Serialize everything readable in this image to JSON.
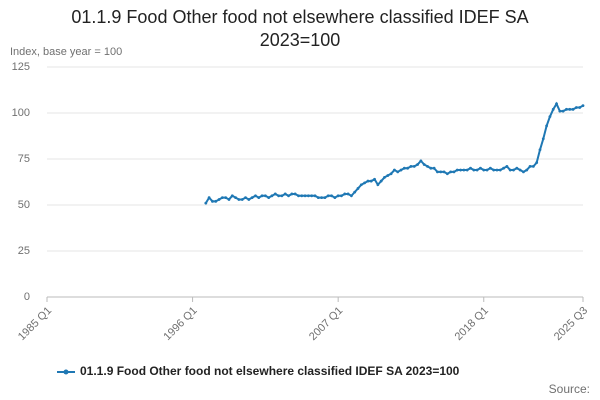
{
  "chart_data": {
    "type": "line",
    "title": "01.1.9 Food Other food not elsewhere classified IDEF SA 2023=100",
    "y_label": "Index, base year = 100",
    "source": "Source:",
    "categories": [
      "1985 Q1",
      null,
      null,
      null,
      null,
      null,
      null,
      null,
      null,
      null,
      null,
      null,
      null,
      null,
      null,
      null,
      null,
      null,
      null,
      null,
      null,
      null,
      null,
      null,
      null,
      null,
      null,
      null,
      null,
      null,
      null,
      null,
      null,
      null,
      null,
      null,
      null,
      null,
      null,
      null,
      null,
      null,
      null,
      null,
      "1996 Q1",
      null,
      null,
      null,
      null,
      null,
      null,
      null,
      null,
      null,
      null,
      null,
      null,
      null,
      null,
      null,
      null,
      null,
      null,
      null,
      null,
      null,
      null,
      null,
      null,
      null,
      null,
      null,
      null,
      null,
      null,
      null,
      null,
      null,
      null,
      null,
      null,
      null,
      null,
      null,
      null,
      null,
      null,
      null,
      "2007 Q1",
      null,
      null,
      null,
      null,
      null,
      null,
      null,
      null,
      null,
      null,
      null,
      null,
      null,
      null,
      null,
      null,
      null,
      null,
      null,
      null,
      null,
      null,
      null,
      null,
      null,
      null,
      null,
      null,
      null,
      null,
      null,
      null,
      null,
      null,
      null,
      null,
      null,
      null,
      null,
      null,
      null,
      null,
      null,
      "2018 Q1",
      null,
      null,
      null,
      null,
      null,
      null,
      null,
      null,
      null,
      null,
      null,
      null,
      null,
      null,
      null,
      null,
      null,
      null,
      null,
      null,
      null,
      null,
      null,
      null,
      null,
      null,
      null,
      null,
      null,
      "2025 Q3"
    ],
    "series": [
      {
        "name": "01.1.9 Food Other food not elsewhere classified IDEF SA 2023=100",
        "color": "#1f78b4",
        "values": [
          null,
          null,
          null,
          null,
          null,
          null,
          null,
          null,
          null,
          null,
          null,
          null,
          null,
          null,
          null,
          null,
          null,
          null,
          null,
          null,
          null,
          null,
          null,
          null,
          null,
          null,
          null,
          null,
          null,
          null,
          null,
          null,
          null,
          null,
          null,
          null,
          null,
          null,
          null,
          null,
          null,
          null,
          null,
          null,
          null,
          null,
          null,
          null,
          51,
          54,
          52,
          52,
          53,
          54,
          54,
          53,
          55,
          54,
          53,
          53,
          54,
          53,
          54,
          55,
          54,
          55,
          55,
          54,
          55,
          56,
          55,
          55,
          56,
          55,
          56,
          56,
          55,
          55,
          55,
          55,
          55,
          55,
          54,
          54,
          54,
          55,
          55,
          54,
          55,
          55,
          56,
          56,
          55,
          57,
          59,
          61,
          62,
          63,
          63,
          64,
          61,
          63,
          65,
          66,
          67,
          69,
          68,
          69,
          70,
          70,
          71,
          71,
          72,
          74,
          72,
          71,
          70,
          70,
          68,
          68,
          68,
          67,
          68,
          68,
          69,
          69,
          69,
          69,
          70,
          69,
          69,
          70,
          69,
          69,
          70,
          69,
          69,
          69,
          70,
          71,
          69,
          69,
          70,
          69,
          68,
          69,
          71,
          71,
          73,
          80,
          86,
          93,
          98,
          102,
          105,
          101,
          101,
          102,
          102,
          102,
          103,
          103,
          104
        ]
      }
    ],
    "ylim": [
      0,
      125
    ],
    "yticks": [
      0,
      25,
      50,
      75,
      100,
      125
    ],
    "grid": true
  }
}
